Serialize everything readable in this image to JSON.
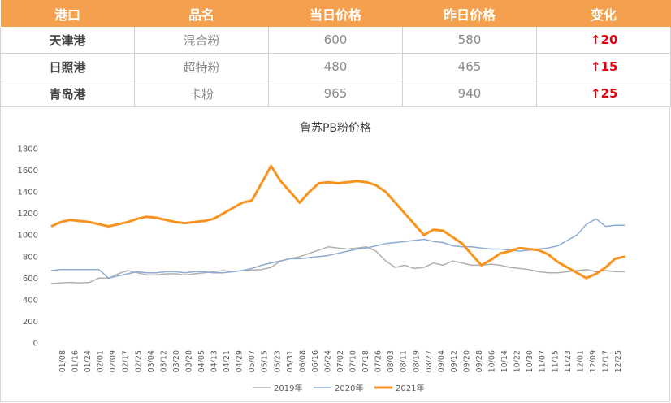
{
  "table": {
    "headers": [
      "港口",
      "品名",
      "当日价格",
      "昨日价格",
      "变化"
    ],
    "rows": [
      {
        "port": "天津港",
        "product": "混合粉",
        "today": "600",
        "yesterday": "580",
        "change": "↑20"
      },
      {
        "port": "日照港",
        "product": "超特粉",
        "today": "480",
        "yesterday": "465",
        "change": "↑15"
      },
      {
        "port": "青岛港",
        "product": "卡粉",
        "today": "965",
        "yesterday": "940",
        "change": "↑25"
      }
    ]
  },
  "colors": {
    "header_bg": "#f5a04f",
    "change_text": "#e60012",
    "s2019": "#b0b0b0",
    "s2020": "#8eaad6",
    "s2021": "#f7931e"
  },
  "chart_data": {
    "type": "line",
    "title": "鲁苏PB粉价格",
    "ylim": [
      0,
      1800
    ],
    "yticks": [
      0,
      200,
      400,
      600,
      800,
      1000,
      1200,
      1400,
      1600,
      1800
    ],
    "x_tick_labels": [
      "01/08",
      "01/16",
      "01/24",
      "02/01",
      "02/09",
      "02/17",
      "02/25",
      "03/04",
      "03/12",
      "03/20",
      "03/28",
      "04/05",
      "04/13",
      "04/21",
      "04/29",
      "05/07",
      "05/15",
      "05/23",
      "05/31",
      "06/08",
      "06/16",
      "06/24",
      "07/02",
      "07/10",
      "07/18",
      "07/26",
      "08/03",
      "08/11",
      "08/19",
      "08/27",
      "09/04",
      "09/12",
      "09/20",
      "09/28",
      "10/06",
      "10/14",
      "10/22",
      "10/30",
      "11/07",
      "11/15",
      "11/23",
      "12/01",
      "12/09",
      "12/17",
      "12/25"
    ],
    "legend": "bottom",
    "series": [
      {
        "name": "2019年",
        "color": "#b0b0b0",
        "values": [
          550,
          555,
          560,
          555,
          560,
          600,
          600,
          640,
          670,
          650,
          630,
          630,
          640,
          640,
          630,
          640,
          650,
          660,
          670,
          660,
          670,
          675,
          680,
          700,
          760,
          780,
          800,
          830,
          860,
          890,
          880,
          870,
          880,
          890,
          850,
          760,
          700,
          720,
          690,
          700,
          740,
          720,
          760,
          740,
          720,
          720,
          730,
          720,
          700,
          690,
          680,
          660,
          650,
          650,
          660,
          670,
          680,
          660,
          670,
          660,
          660
        ]
      },
      {
        "name": "2020年",
        "color": "#8eaad6",
        "values": [
          670,
          680,
          680,
          680,
          680,
          680,
          600,
          620,
          640,
          660,
          650,
          650,
          660,
          660,
          650,
          660,
          660,
          650,
          650,
          660,
          670,
          690,
          720,
          740,
          760,
          780,
          780,
          790,
          800,
          810,
          830,
          850,
          870,
          880,
          900,
          920,
          930,
          940,
          950,
          960,
          940,
          930,
          900,
          890,
          890,
          880,
          870,
          870,
          860,
          850,
          860,
          870,
          880,
          900,
          950,
          1000,
          1100,
          1150,
          1080,
          1090,
          1090
        ]
      },
      {
        "name": "2021年",
        "color": "#f7931e",
        "values": [
          1080,
          1120,
          1140,
          1130,
          1120,
          1100,
          1080,
          1100,
          1120,
          1150,
          1170,
          1160,
          1140,
          1120,
          1110,
          1120,
          1130,
          1150,
          1200,
          1250,
          1300,
          1320,
          1480,
          1640,
          1500,
          1400,
          1300,
          1400,
          1480,
          1490,
          1480,
          1490,
          1500,
          1490,
          1460,
          1400,
          1300,
          1200,
          1100,
          1000,
          1050,
          1040,
          980,
          920,
          820,
          720,
          770,
          830,
          850,
          880,
          870,
          860,
          820,
          750,
          700,
          650,
          600,
          640,
          700,
          780,
          800
        ]
      }
    ]
  }
}
